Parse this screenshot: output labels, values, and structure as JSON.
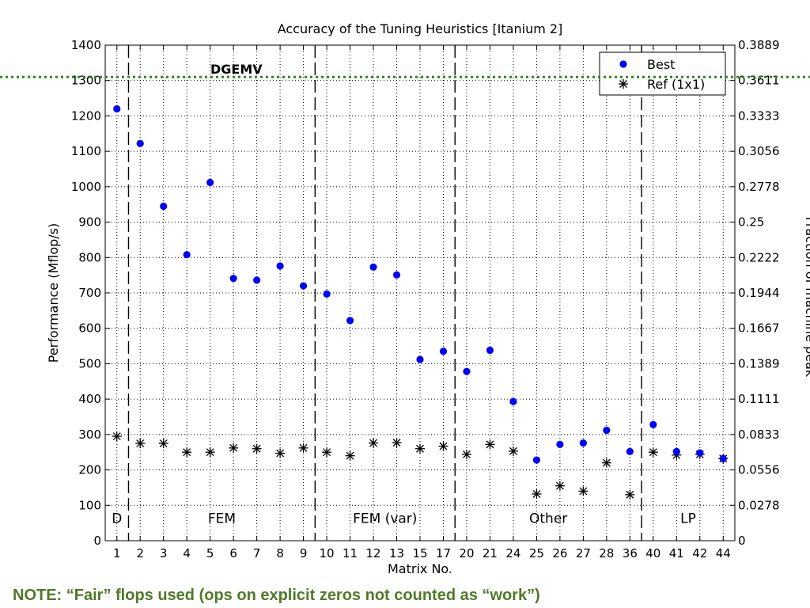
{
  "chart_data": {
    "type": "scatter",
    "title": "Accuracy of the Tuning Heuristics [Itanium 2]",
    "xlabel": "Matrix No.",
    "ylabel": "Performance (Mflop/s)",
    "y2label": "Fraction of machine peak",
    "categories": [
      "1",
      "2",
      "3",
      "4",
      "5",
      "6",
      "7",
      "8",
      "9",
      "10",
      "11",
      "12",
      "13",
      "15",
      "17",
      "20",
      "21",
      "24",
      "25",
      "26",
      "27",
      "28",
      "36",
      "40",
      "41",
      "42",
      "44"
    ],
    "ylim": [
      0,
      1400
    ],
    "yticks": [
      0,
      100,
      200,
      300,
      400,
      500,
      600,
      700,
      800,
      900,
      1000,
      1100,
      1200,
      1300,
      1400
    ],
    "y2ticks": [
      "0",
      "0.0278",
      "0.0556",
      "0.0833",
      "0.1111",
      "0.1389",
      "0.1667",
      "0.1944",
      "0.2222",
      "0.25",
      "0.2778",
      "0.3056",
      "0.3333",
      "0.3611",
      "0.3889"
    ],
    "grid": true,
    "legend_position": "top-right",
    "series": [
      {
        "name": "Best",
        "marker": "dot",
        "color": "#0000ff",
        "values": [
          1220,
          1122,
          945,
          808,
          1012,
          741,
          736,
          776,
          720,
          697,
          622,
          773,
          751,
          512,
          535,
          478,
          538,
          393,
          228,
          272,
          276,
          312,
          252,
          328,
          252,
          248,
          232
        ]
      },
      {
        "name": "Ref (1x1)",
        "marker": "asterisk",
        "color": "#000000",
        "values": [
          295,
          275,
          275,
          250,
          250,
          262,
          260,
          247,
          262,
          250,
          240,
          276,
          277,
          260,
          267,
          244,
          272,
          253,
          132,
          155,
          140,
          220,
          130,
          250,
          242,
          244,
          232
        ]
      }
    ],
    "regions": [
      {
        "label": "D",
        "from": 0,
        "to": 0
      },
      {
        "label": "FEM",
        "from": 1,
        "to": 8
      },
      {
        "label": "FEM (var)",
        "from": 9,
        "to": 14
      },
      {
        "label": "Other",
        "from": 15,
        "to": 22
      },
      {
        "label": "LP",
        "from": 23,
        "to": 26
      }
    ],
    "annotation": "DGEMV",
    "reference_line_value": 1310,
    "reference_line_color": "#2a8a18"
  },
  "note": "NOTE: “Fair” flops used (ops on explicit zeros not counted as “work”)"
}
